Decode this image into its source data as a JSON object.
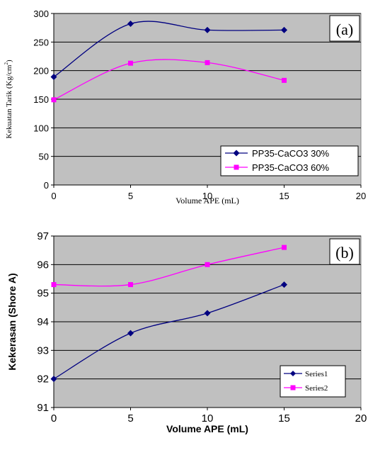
{
  "chart_data": [
    {
      "type": "line",
      "panel_label": "(a)",
      "xlabel": "Volume APE (mL)",
      "ylabel": "Kekuatan Tarik (Kg/cm²)",
      "ylabel_main": "Kekuatan Tarik (Kg/cm",
      "ylabel_sup": "2",
      "ylabel_close": ")",
      "xlim": [
        0,
        20
      ],
      "ylim": [
        0,
        300
      ],
      "x_ticks": [
        "0",
        "5",
        "10",
        "15",
        "20"
      ],
      "y_ticks": [
        "0",
        "50",
        "100",
        "150",
        "200",
        "250",
        "300"
      ],
      "grid": true,
      "legend_position": "bottom-right",
      "plot_bg": "#c0c0c0",
      "series": [
        {
          "name": "PP35-CaCO3 30%",
          "color": "#000080",
          "marker": "diamond",
          "x": [
            0,
            5,
            10,
            15
          ],
          "values": [
            189,
            282,
            271,
            271
          ]
        },
        {
          "name": "PP35-CaCO3 60%",
          "color": "#ff00ff",
          "marker": "square",
          "x": [
            0,
            5,
            10,
            15
          ],
          "values": [
            149,
            213,
            214,
            183
          ]
        }
      ]
    },
    {
      "type": "line",
      "panel_label": "(b)",
      "xlabel": "Volume APE (mL)",
      "ylabel": "Kekerasan (Shore A)",
      "xlim": [
        0,
        20
      ],
      "ylim": [
        91,
        97
      ],
      "x_ticks": [
        "0",
        "5",
        "10",
        "15",
        "20"
      ],
      "y_ticks": [
        "91",
        "92",
        "93",
        "94",
        "95",
        "96",
        "97"
      ],
      "grid": true,
      "legend_position": "bottom-right",
      "plot_bg": "#c0c0c0",
      "series": [
        {
          "name": "Series1",
          "color": "#000080",
          "marker": "diamond",
          "x": [
            0,
            5,
            10,
            15
          ],
          "values": [
            92.0,
            93.6,
            94.3,
            95.3
          ]
        },
        {
          "name": "Series2",
          "color": "#ff00ff",
          "marker": "square",
          "x": [
            0,
            5,
            10,
            15
          ],
          "values": [
            95.3,
            95.3,
            96.0,
            96.6
          ]
        }
      ]
    }
  ]
}
